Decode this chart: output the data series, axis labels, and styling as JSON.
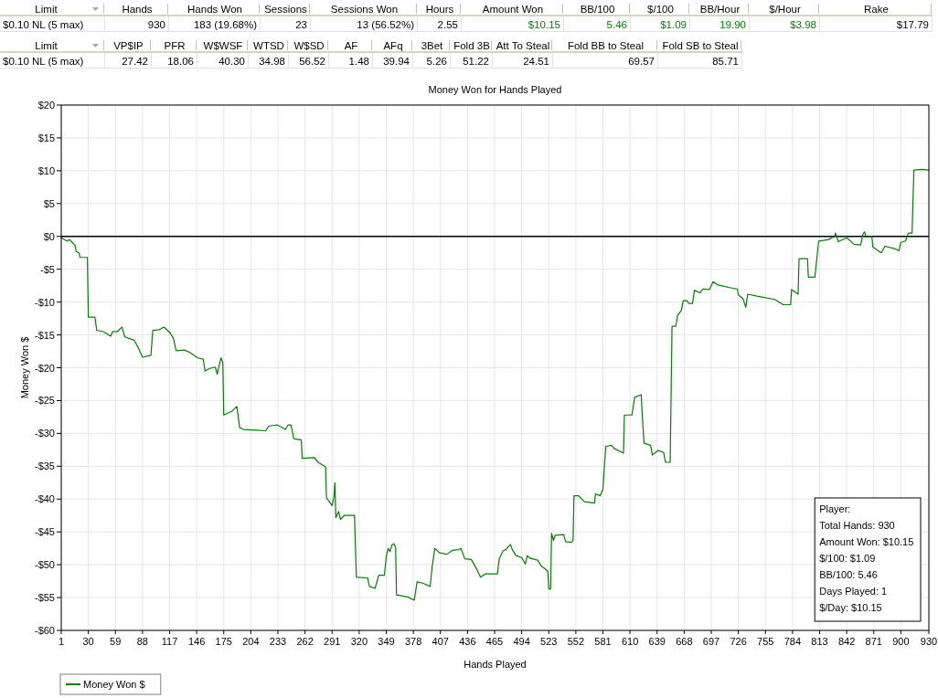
{
  "chart_data": [
    {
      "type": "other",
      "categories": [
        "Limit",
        "Hands",
        "Hands Won",
        "Sessions",
        "Sessions Won",
        "Hours",
        "Amount Won",
        "BB/100",
        "$/100",
        "BB/Hour",
        "$/Hour",
        "Rake"
      ],
      "value_labels": [
        "$0.10 NL (5 max)",
        "930",
        "183 (19.68%)",
        "23",
        "13 (56.52%)",
        "2.55",
        "$10.15",
        "5.46",
        "$1.09",
        "19.90",
        "$3.98",
        "$17.79"
      ],
      "colors": [
        "#000000",
        "#000000",
        "#000000",
        "#000000",
        "#000000",
        "#000000",
        "#008000",
        "#008000",
        "#008000",
        "#008000",
        "#008000",
        "#000000"
      ]
    },
    {
      "type": "other",
      "categories": [
        "Limit",
        "VP$IP",
        "PFR",
        "W$WSF",
        "WTSD",
        "W$SD",
        "AF",
        "AFq",
        "3Bet",
        "Fold 3B",
        "Att To Steal",
        "Fold BB to Steal",
        "Fold SB to Steal"
      ],
      "value_labels": [
        "$0.10 NL (5 max)",
        "27.42",
        "18.06",
        "40.30",
        "34.98",
        "56.52",
        "1.48",
        "39.94",
        "5.26",
        "51.22",
        "24.51",
        "69.57",
        "85.71"
      ]
    },
    {
      "type": "line",
      "title": "Money Won for Hands Played",
      "xlabel": "Hands Played",
      "ylabel": "Money Won $",
      "x": [
        1,
        7,
        10,
        16,
        17,
        20,
        21,
        29,
        30,
        37,
        39,
        46,
        54,
        56,
        61,
        66,
        69,
        79,
        84,
        88,
        97,
        99,
        106,
        111,
        117,
        121,
        124,
        133,
        139,
        147,
        153,
        155,
        160,
        166,
        168,
        172,
        174,
        175,
        184,
        189,
        192,
        196,
        210,
        220,
        223,
        232,
        241,
        244,
        247,
        250,
        258,
        259,
        272,
        276,
        284,
        285,
        291,
        293,
        294,
        295,
        298,
        300,
        304,
        315,
        317,
        329,
        331,
        337,
        341,
        347,
        349,
        351,
        353,
        355,
        357,
        359,
        360,
        372,
        379,
        382,
        388,
        396,
        398,
        401,
        406,
        414,
        420,
        427,
        429,
        433,
        440,
        446,
        450,
        455,
        468,
        470,
        474,
        477,
        482,
        484,
        488,
        494,
        498,
        500,
        503,
        511,
        515,
        518,
        522,
        523,
        525,
        526,
        528,
        530,
        539,
        541,
        547,
        549,
        550,
        555,
        561,
        572,
        573,
        578,
        581,
        584,
        590,
        593,
        603,
        604,
        612,
        615,
        622,
        623,
        625,
        632,
        634,
        640,
        646,
        648,
        653,
        655,
        659,
        661,
        665,
        667,
        671,
        673,
        677,
        679,
        685,
        688,
        695,
        699,
        704,
        720,
        725,
        726,
        731,
        734,
        736,
        746,
        765,
        774,
        782,
        783,
        790,
        791,
        800,
        801,
        808,
        812,
        822,
        829,
        830,
        833,
        842,
        850,
        857,
        859,
        861,
        863,
        869,
        870,
        879,
        883,
        894,
        898,
        900,
        905,
        908,
        912,
        913,
        914,
        923,
        930
      ],
      "series": [
        {
          "name": "Money Won $",
          "color": "#008000",
          "values": [
            -0.2,
            -0.7,
            -0.5,
            -1.4,
            -2.3,
            -2.5,
            -3.2,
            -3.2,
            -12.3,
            -12.3,
            -14.3,
            -14.5,
            -15.2,
            -14.5,
            -14.5,
            -13.8,
            -15.3,
            -15.8,
            -17.1,
            -18.4,
            -18.1,
            -14.3,
            -14.2,
            -13.8,
            -14.6,
            -15.5,
            -17.4,
            -17.3,
            -17.7,
            -18.5,
            -18.7,
            -20.5,
            -20.1,
            -19.9,
            -21.0,
            -18.5,
            -19.2,
            -27.2,
            -26.6,
            -25.9,
            -29.1,
            -29.4,
            -29.5,
            -29.6,
            -28.9,
            -28.7,
            -29.4,
            -28.7,
            -28.7,
            -30.8,
            -31.0,
            -33.8,
            -33.7,
            -34.4,
            -35.1,
            -39.8,
            -41.0,
            -39.6,
            -37.5,
            -42.8,
            -41.9,
            -43.1,
            -42.5,
            -42.5,
            -51.9,
            -52.0,
            -53.3,
            -53.6,
            -51.6,
            -51.6,
            -48.8,
            -47.5,
            -48.0,
            -47.0,
            -46.8,
            -47.3,
            -54.6,
            -54.9,
            -55.4,
            -52.6,
            -52.8,
            -53.3,
            -50.5,
            -47.5,
            -48.2,
            -48.4,
            -47.8,
            -47.7,
            -47.5,
            -49.1,
            -49.2,
            -50.7,
            -51.9,
            -51.4,
            -51.4,
            -49.1,
            -47.9,
            -47.7,
            -46.9,
            -47.7,
            -48.6,
            -48.9,
            -49.9,
            -48.6,
            -49.0,
            -49.3,
            -50.2,
            -50.5,
            -51.0,
            -53.7,
            -53.7,
            -45.2,
            -46.3,
            -45.5,
            -45.4,
            -46.5,
            -46.6,
            -46.3,
            -39.5,
            -39.5,
            -40.4,
            -40.6,
            -39.2,
            -39.5,
            -38.5,
            -32.0,
            -31.8,
            -32.3,
            -33.0,
            -27.2,
            -27.2,
            -24.5,
            -24.1,
            -26.9,
            -31.5,
            -31.8,
            -33.3,
            -32.6,
            -32.9,
            -34.4,
            -34.4,
            -13.7,
            -13.7,
            -12.0,
            -11.3,
            -9.8,
            -9.8,
            -10.2,
            -10.2,
            -8.2,
            -8.6,
            -8.0,
            -8.1,
            -6.9,
            -7.4,
            -7.9,
            -8.0,
            -8.9,
            -9.5,
            -10.8,
            -8.8,
            -9.1,
            -9.6,
            -10.4,
            -10.4,
            -8.1,
            -8.8,
            -3.4,
            -3.4,
            -6.2,
            -6.2,
            -0.7,
            -0.5,
            0,
            0.5,
            -0.8,
            -0.2,
            -1.2,
            -1.3,
            0.2,
            0.7,
            -0.1,
            0,
            -1.6,
            -2.5,
            -1.5,
            -1.9,
            -2.2,
            -0.9,
            -0.7,
            0.5,
            0.5,
            5.3,
            10.1,
            10.2,
            10.1
          ]
        }
      ],
      "xlim": [
        1,
        930
      ],
      "xticks": [
        1,
        30,
        59,
        88,
        117,
        146,
        175,
        204,
        233,
        262,
        291,
        320,
        349,
        378,
        407,
        436,
        465,
        494,
        523,
        552,
        581,
        610,
        639,
        668,
        697,
        726,
        755,
        784,
        813,
        842,
        871,
        900,
        930
      ],
      "ylim": [
        -60,
        20
      ],
      "yticks": [
        {
          "value": 20,
          "label": "$20"
        },
        {
          "value": 15,
          "label": "$15"
        },
        {
          "value": 10,
          "label": "$10"
        },
        {
          "value": 5,
          "label": "$5"
        },
        {
          "value": 0,
          "label": "$0"
        },
        {
          "value": -5,
          "label": "-$5"
        },
        {
          "value": -10,
          "label": "-$10"
        },
        {
          "value": -15,
          "label": "-$15"
        },
        {
          "value": -20,
          "label": "-$20"
        },
        {
          "value": -25,
          "label": "-$25"
        },
        {
          "value": -30,
          "label": "-$30"
        },
        {
          "value": -35,
          "label": "-$35"
        },
        {
          "value": -40,
          "label": "-$40"
        },
        {
          "value": -45,
          "label": "-$45"
        },
        {
          "value": -50,
          "label": "-$50"
        },
        {
          "value": -55,
          "label": "-$55"
        },
        {
          "value": -60,
          "label": "-$60"
        }
      ],
      "grid": true,
      "legend": "bottom left",
      "ref_lines": [
        {
          "axis": "y",
          "value": 0,
          "color": "#000000"
        }
      ],
      "annotations": [
        "Player:",
        "Total Hands: 930",
        "Amount Won: $10.15",
        "$/100: $1.09",
        "BB/100: 5.46",
        "Days Played: 1",
        "$/Day: $10.15"
      ]
    }
  ]
}
